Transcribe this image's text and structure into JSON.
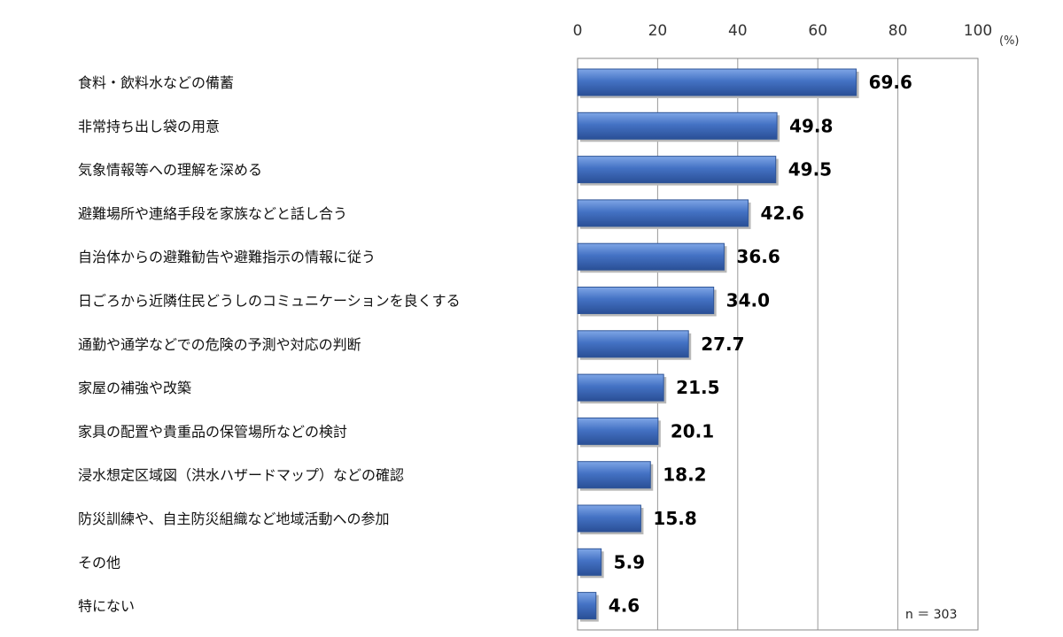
{
  "chart_data": {
    "type": "bar",
    "orientation": "horizontal",
    "categories": [
      "食料・飲料水などの備蓄",
      "非常持ち出し袋の用意",
      "気象情報等への理解を深める",
      "避難場所や連絡手段を家族などと話し合う",
      "自治体からの避難勧告や避難指示の情報に従う",
      "日ごろから近隣住民どうしのコミュニケーションを良くする",
      "通勤や通学などでの危険の予測や対応の判断",
      "家屋の補強や改築",
      "家具の配置や貴重品の保管場所などの検討",
      "浸水想定区域図（洪水ハザードマップ）などの確認",
      "防災訓練や、自主防災組織など地域活動への参加",
      "その他",
      "特にない"
    ],
    "values": [
      69.6,
      49.8,
      49.5,
      42.6,
      36.6,
      34.0,
      27.7,
      21.5,
      20.1,
      18.2,
      15.8,
      5.9,
      4.6
    ],
    "value_labels": [
      "69.6",
      "49.8",
      "49.5",
      "42.6",
      "36.6",
      "34.0",
      "27.7",
      "21.5",
      "20.1",
      "18.2",
      "15.8",
      "5.9",
      "4.6"
    ],
    "xlim": [
      0,
      100
    ],
    "xticks": [
      0,
      20,
      40,
      60,
      80,
      100
    ],
    "x_unit": "(%)",
    "note": "n ＝ 303",
    "grid": true,
    "axis_position": "top",
    "bar_color": "#4472C4"
  }
}
